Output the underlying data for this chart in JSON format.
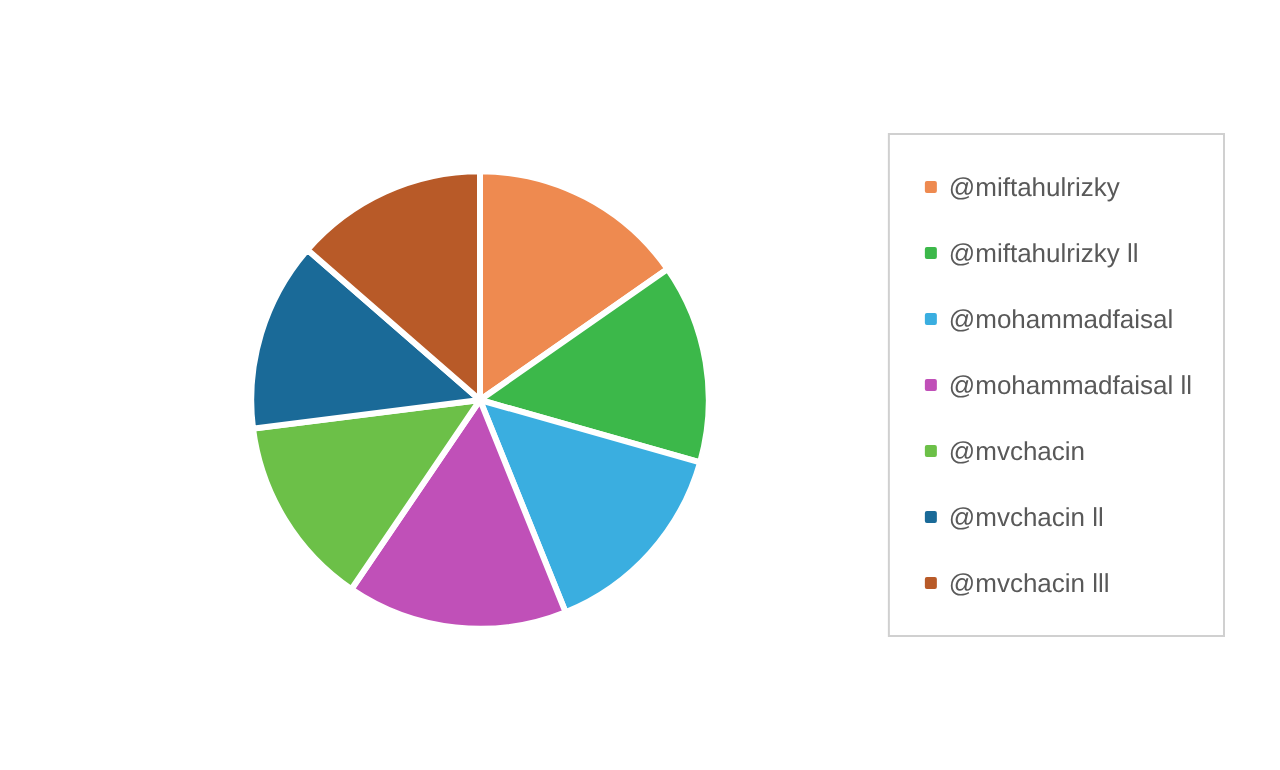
{
  "chart_data": {
    "type": "pie",
    "categories": [
      "@miftahulrizky",
      "@miftahulrizky ll",
      "@mohammadfaisal",
      "@mohammadfaisal ll",
      "@mvchacin",
      "@mvchacin ll",
      "@mvchacin lll"
    ],
    "values": [
      15.3,
      14.1,
      14.5,
      15.6,
      13.5,
      13.4,
      13.6
    ],
    "colors": [
      "#ee8a50",
      "#3cb84a",
      "#3aaee0",
      "#c050b8",
      "#6cc048",
      "#1a6a98",
      "#b85a28"
    ],
    "legend": "right"
  }
}
